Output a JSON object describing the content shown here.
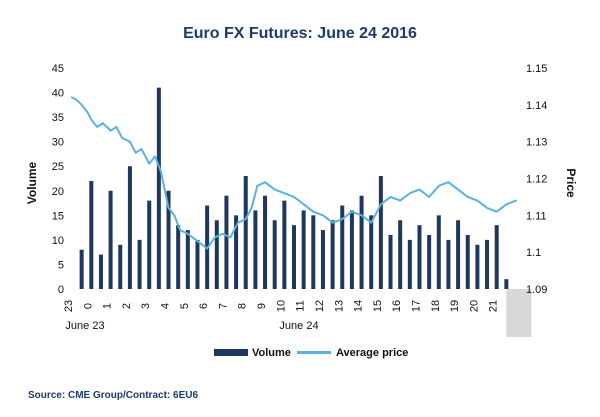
{
  "chart_data": {
    "type": "bar",
    "title": "Euro FX Futures: June 24 2016",
    "y_left_label": "Volume",
    "y_right_label": "Price",
    "y_left_ticks": [
      "0",
      "5",
      "10",
      "15",
      "20",
      "25",
      "30",
      "35",
      "40",
      "45"
    ],
    "y_right_ticks": [
      "1.09",
      "1.1",
      "1.11",
      "1.12",
      "1.13",
      "1.14",
      "1.15"
    ],
    "ylim_left": [
      0,
      45
    ],
    "ylim_right": [
      1.09,
      1.15
    ],
    "x_ticks": [
      "23",
      "0",
      "1",
      "2",
      "3",
      "4",
      "5",
      "6",
      "7",
      "8",
      "9",
      "10",
      "11",
      "12",
      "13",
      "14",
      "15",
      "16",
      "17",
      "18",
      "19",
      "20",
      "21"
    ],
    "date_labels": [
      "June 23",
      "June 24"
    ],
    "grid": false,
    "legend": {
      "position": "bottom",
      "volume_label": "Volume",
      "price_label": "Average price"
    },
    "series": [
      {
        "name": "Volume",
        "type": "bar",
        "axis": "left",
        "color": "#1f365f",
        "x": [
          -0.5,
          0,
          0.5,
          1,
          1.5,
          2,
          2.5,
          3,
          3.5,
          4,
          4.5,
          5,
          5.5,
          6,
          6.5,
          7,
          7.5,
          8,
          8.5,
          9,
          9.5,
          10,
          10.5,
          11,
          11.5,
          12,
          12.5,
          13,
          13.5,
          14,
          14.5,
          15,
          15.5,
          16,
          16.5,
          17,
          17.5,
          18,
          18.5,
          19,
          19.5,
          20,
          20.5,
          21,
          21.5
        ],
        "values": [
          8,
          22,
          7,
          20,
          9,
          25,
          10,
          18,
          41,
          20,
          13,
          12,
          10,
          17,
          14,
          19,
          15,
          23,
          16,
          19,
          14,
          18,
          13,
          16,
          15,
          12,
          14,
          17,
          16,
          19,
          15,
          23,
          11,
          14,
          10,
          13,
          11,
          15,
          10,
          14,
          11,
          9,
          10,
          13,
          2
        ]
      },
      {
        "name": "Average price",
        "type": "line",
        "axis": "right",
        "color": "#5ab2df",
        "x": [
          -1,
          -0.8,
          -0.5,
          -0.2,
          0,
          0.3,
          0.6,
          1,
          1.3,
          1.6,
          2,
          2.3,
          2.6,
          3,
          3.3,
          3.6,
          4,
          4.3,
          4.6,
          5,
          5.5,
          6,
          6.4,
          6.8,
          7.2,
          7.6,
          8,
          8.3,
          8.6,
          9,
          9.5,
          10,
          10.5,
          11,
          11.5,
          12,
          12.5,
          13,
          13.5,
          14,
          14.5,
          15,
          15.5,
          16,
          16.5,
          17,
          17.5,
          18,
          18.5,
          19,
          19.5,
          20,
          20.5,
          21,
          21.5,
          22
        ],
        "values": [
          1.142,
          1.1415,
          1.14,
          1.138,
          1.136,
          1.134,
          1.135,
          1.133,
          1.134,
          1.131,
          1.13,
          1.127,
          1.128,
          1.124,
          1.126,
          1.122,
          1.112,
          1.11,
          1.106,
          1.105,
          1.103,
          1.101,
          1.104,
          1.105,
          1.104,
          1.108,
          1.109,
          1.112,
          1.118,
          1.119,
          1.117,
          1.116,
          1.115,
          1.113,
          1.111,
          1.11,
          1.108,
          1.109,
          1.111,
          1.11,
          1.108,
          1.113,
          1.115,
          1.114,
          1.116,
          1.117,
          1.115,
          1.118,
          1.119,
          1.117,
          1.115,
          1.114,
          1.112,
          1.111,
          1.113,
          1.114
        ]
      }
    ]
  },
  "source": "Source: CME Group/Contract: 6EU6"
}
